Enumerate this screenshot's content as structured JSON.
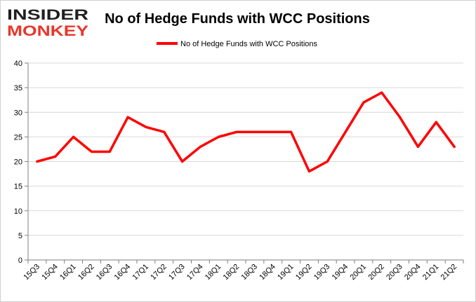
{
  "logo": {
    "line1": "INSIDER",
    "line2": "MONKEY",
    "colors": {
      "line1": "#1f1f1f",
      "line2": "#e8362a"
    }
  },
  "chart_data": {
    "type": "line",
    "title": "No of Hedge Funds with WCC Positions",
    "xlabel": "",
    "ylabel": "",
    "legend_position": "top-center",
    "grid": true,
    "ylim": [
      0,
      40
    ],
    "yticks": [
      0,
      5,
      10,
      15,
      20,
      25,
      30,
      35,
      40
    ],
    "categories": [
      "15Q3",
      "15Q4",
      "16Q1",
      "16Q2",
      "16Q3",
      "16Q4",
      "17Q1",
      "17Q2",
      "17Q3",
      "17Q4",
      "18Q1",
      "18Q2",
      "18Q3",
      "18Q4",
      "19Q1",
      "19Q2",
      "19Q3",
      "19Q4",
      "20Q1",
      "20Q2",
      "20Q3",
      "20Q4",
      "21Q1",
      "21Q2"
    ],
    "series": [
      {
        "name": "No of Hedge Funds with WCC Positions",
        "color": "#ff0000",
        "values": [
          20,
          21,
          25,
          22,
          22,
          29,
          27,
          26,
          20,
          23,
          25,
          26,
          26,
          26,
          26,
          18,
          20,
          26,
          32,
          34,
          29,
          23,
          28,
          23
        ]
      }
    ]
  }
}
